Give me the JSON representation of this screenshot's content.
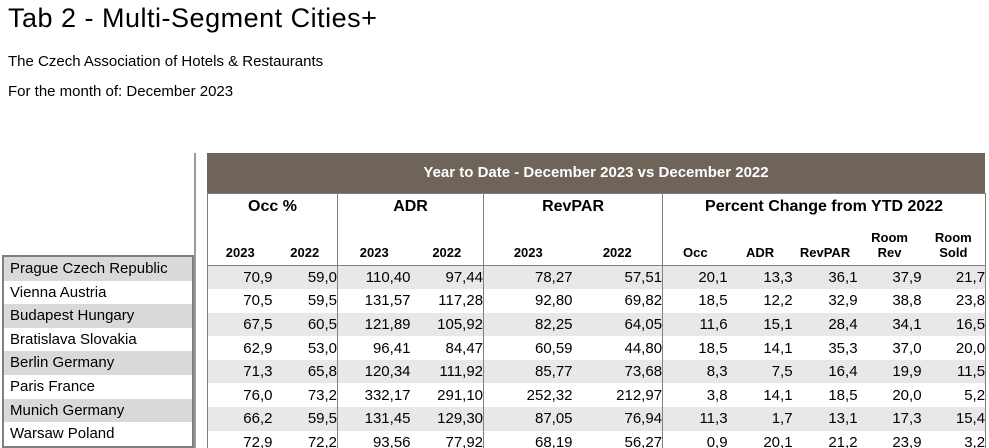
{
  "page": {
    "title": "Tab 2 - Multi-Segment Cities+",
    "subtitle": "The Czech Association of Hotels & Restaurants",
    "period_label": "For the month of: December 2023"
  },
  "colors": {
    "banner_background": "#6e6459",
    "banner_text": "#ffffff",
    "stripe_data": "#e8e8e8",
    "stripe_city": "#d9d9d9",
    "border_gray": "#7f7f7f"
  },
  "table": {
    "banner": "Year to Date - December 2023 vs December 2022",
    "groups": [
      {
        "label": "Occ %",
        "cols": [
          "2023",
          "2022"
        ]
      },
      {
        "label": "ADR",
        "cols": [
          "2023",
          "2022"
        ]
      },
      {
        "label": "RevPAR",
        "cols": [
          "2023",
          "2022"
        ]
      },
      {
        "label": "Percent Change from YTD 2022",
        "cols": [
          "Occ",
          "ADR",
          "RevPAR",
          "Room\nRev",
          "Room\nSold"
        ]
      }
    ],
    "rows": [
      {
        "city": "Prague Czech Republic",
        "values": [
          "70,9",
          "59,0",
          "110,40",
          "97,44",
          "78,27",
          "57,51",
          "20,1",
          "13,3",
          "36,1",
          "37,9",
          "21,7"
        ]
      },
      {
        "city": "Vienna Austria",
        "values": [
          "70,5",
          "59,5",
          "131,57",
          "117,28",
          "92,80",
          "69,82",
          "18,5",
          "12,2",
          "32,9",
          "38,8",
          "23,8"
        ]
      },
      {
        "city": "Budapest Hungary",
        "values": [
          "67,5",
          "60,5",
          "121,89",
          "105,92",
          "82,25",
          "64,05",
          "11,6",
          "15,1",
          "28,4",
          "34,1",
          "16,5"
        ]
      },
      {
        "city": "Bratislava Slovakia",
        "values": [
          "62,9",
          "53,0",
          "96,41",
          "84,47",
          "60,59",
          "44,80",
          "18,5",
          "14,1",
          "35,3",
          "37,0",
          "20,0"
        ]
      },
      {
        "city": "Berlin Germany",
        "values": [
          "71,3",
          "65,8",
          "120,34",
          "111,92",
          "85,77",
          "73,68",
          "8,3",
          "7,5",
          "16,4",
          "19,9",
          "11,5"
        ]
      },
      {
        "city": "Paris France",
        "values": [
          "76,0",
          "73,2",
          "332,17",
          "291,10",
          "252,32",
          "212,97",
          "3,8",
          "14,1",
          "18,5",
          "20,0",
          "5,2"
        ]
      },
      {
        "city": "Munich Germany",
        "values": [
          "66,2",
          "59,5",
          "131,45",
          "129,30",
          "87,05",
          "76,94",
          "11,3",
          "1,7",
          "13,1",
          "17,3",
          "15,4"
        ]
      },
      {
        "city": "Warsaw Poland",
        "values": [
          "72,9",
          "72,2",
          "93,56",
          "77,92",
          "68,19",
          "56,27",
          "0,9",
          "20,1",
          "21,2",
          "23,9",
          "3,2"
        ]
      }
    ]
  }
}
